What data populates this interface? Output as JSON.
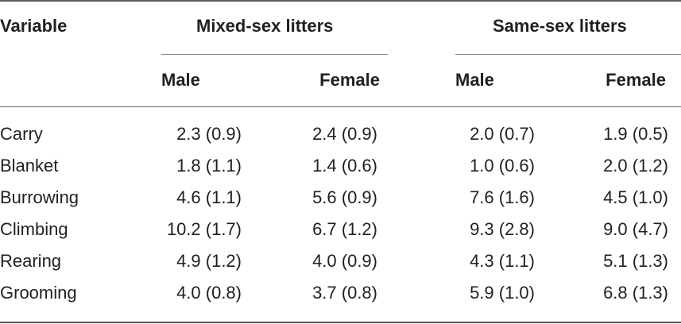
{
  "table": {
    "header": {
      "variable": "Variable",
      "groups": [
        {
          "label": "Mixed-sex litters",
          "sub": [
            "Male",
            "Female"
          ]
        },
        {
          "label": "Same-sex litters",
          "sub": [
            "Male",
            "Female"
          ]
        }
      ]
    },
    "rows": [
      {
        "variable": "Carry",
        "values": [
          "2.3 (0.9)",
          "2.4 (0.9)",
          "2.0 (0.7)",
          "1.9 (0.5)"
        ]
      },
      {
        "variable": "Blanket",
        "values": [
          "1.8 (1.1)",
          "1.4 (0.6)",
          "1.0 (0.6)",
          "2.0 (1.2)"
        ]
      },
      {
        "variable": "Burrowing",
        "values": [
          "4.6 (1.1)",
          "5.6 (0.9)",
          "7.6 (1.6)",
          "4.5 (1.0)"
        ]
      },
      {
        "variable": "Climbing",
        "values": [
          "10.2 (1.7)",
          "6.7 (1.2)",
          "9.3 (2.8)",
          "9.0 (4.7)"
        ]
      },
      {
        "variable": "Rearing",
        "values": [
          "4.9 (1.2)",
          "4.0 (0.9)",
          "4.3 (1.1)",
          "5.1 (1.3)"
        ]
      },
      {
        "variable": "Grooming",
        "values": [
          "4.0 (0.8)",
          "3.7 (0.8)",
          "5.9 (1.0)",
          "6.8 (1.3)"
        ]
      }
    ]
  }
}
